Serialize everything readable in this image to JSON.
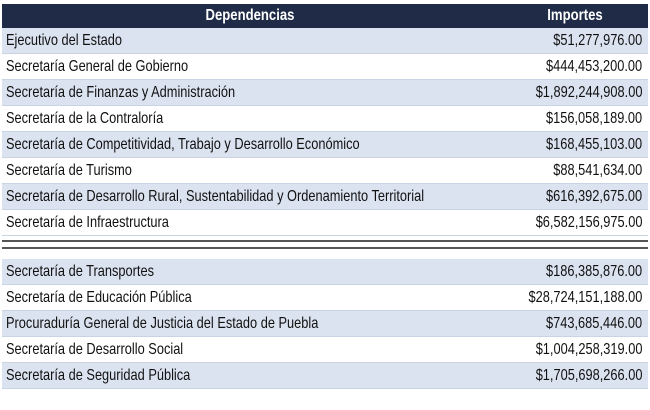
{
  "table": {
    "header": [
      "Dependencias",
      "Importes"
    ],
    "groups": [
      {
        "rows": [
          [
            "Ejecutivo del Estado",
            "$51,277,976.00"
          ],
          [
            "Secretaría General de Gobierno",
            "$444,453,200.00"
          ],
          [
            "Secretaría de Finanzas y Administración",
            "$1,892,244,908.00"
          ],
          [
            "Secretaría de la Contraloría",
            "$156,058,189.00"
          ],
          [
            "Secretaría de Competitividad, Trabajo y Desarrollo Económico",
            "$168,455,103.00"
          ],
          [
            "Secretaría de Turismo",
            "$88,541,634.00"
          ],
          [
            "Secretaría de Desarrollo Rural, Sustentabilidad y Ordenamiento Territorial",
            "$616,392,675.00"
          ],
          [
            "Secretaría de Infraestructura",
            "$6,582,156,975.00"
          ]
        ]
      },
      {
        "rows": [
          [
            "Secretaría de Transportes",
            "$186,385,876.00"
          ],
          [
            "Secretaría de Educación Pública",
            "$28,724,151,188.00"
          ],
          [
            "Procuraduría General de Justicia del Estado de Puebla",
            "$743,685,446.00"
          ],
          [
            "Secretaría de Desarrollo Social",
            "$1,004,258,319.00"
          ],
          [
            "Secretaría de Seguridad Pública",
            "$1,705,698,266.00"
          ]
        ]
      }
    ]
  }
}
